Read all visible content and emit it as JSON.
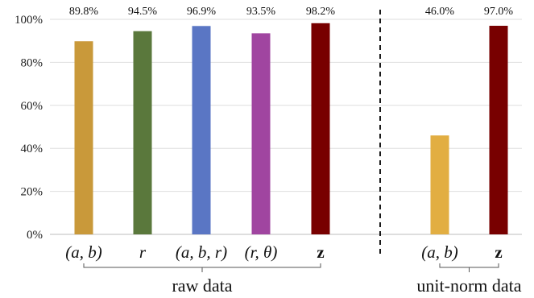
{
  "chart_data": {
    "type": "bar",
    "ylim": [
      0,
      100
    ],
    "yticks": [
      "0%",
      "20%",
      "40%",
      "60%",
      "80%",
      "100%"
    ],
    "groups": [
      {
        "name": "raw data",
        "categories": [
          "(a, b)",
          "r",
          "(a, b, r)",
          "(r, θ)",
          "z"
        ],
        "values": [
          89.8,
          94.5,
          96.9,
          93.5,
          98.2
        ],
        "value_labels": [
          "89.8%",
          "94.5%",
          "96.9%",
          "93.5%",
          "98.2%"
        ],
        "colors": [
          "#C9993A",
          "#5A783C",
          "#5A76C4",
          "#A045A0",
          "#780000"
        ]
      },
      {
        "name": "unit-norm data",
        "categories": [
          "(a, b)",
          "z"
        ],
        "values": [
          46.0,
          97.0
        ],
        "value_labels": [
          "46.0%",
          "97.0%"
        ],
        "colors": [
          "#E2AE42",
          "#780000"
        ]
      }
    ],
    "grid": true
  }
}
